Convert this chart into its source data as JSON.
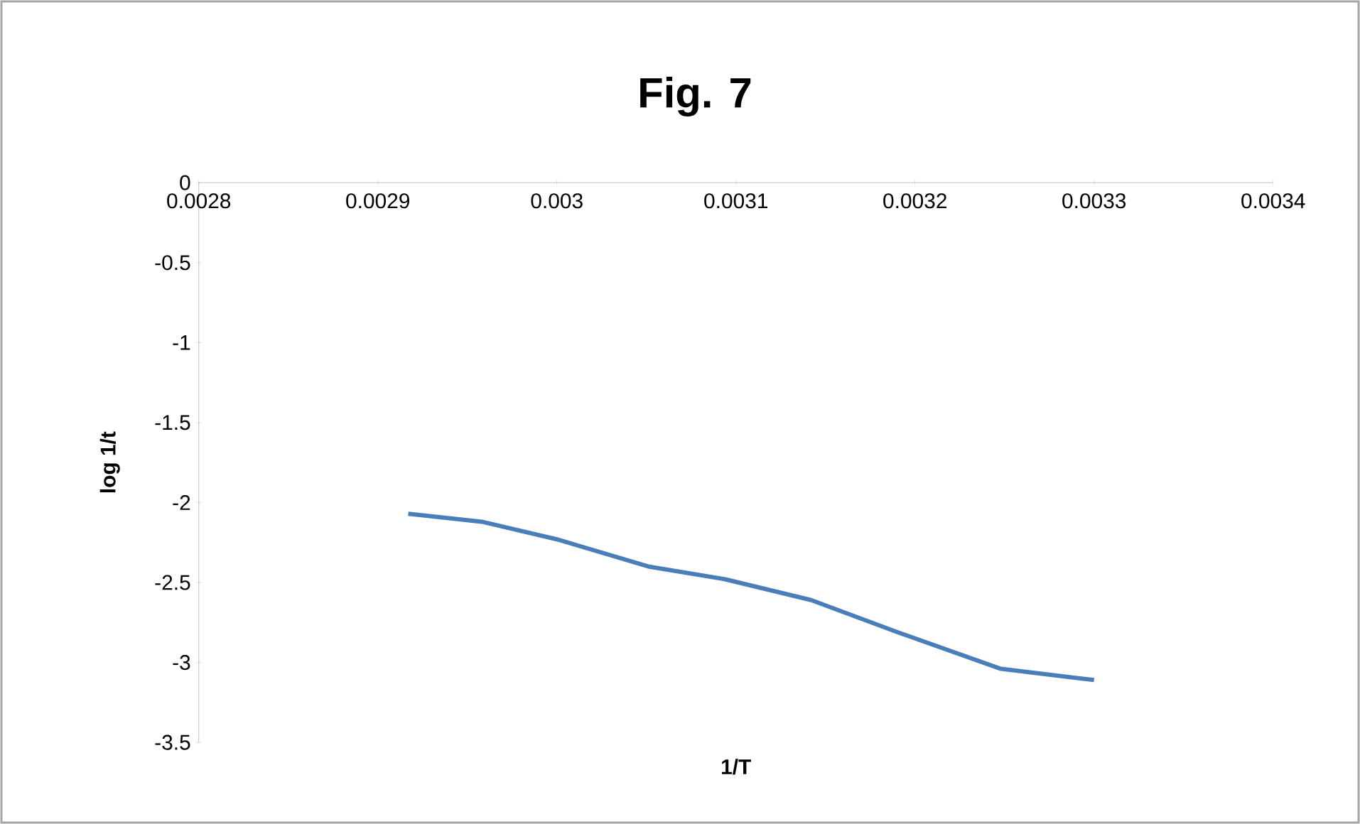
{
  "chart_data": {
    "type": "line",
    "title": "Fig. 7",
    "xlabel": "1/T",
    "ylabel": "log 1/t",
    "x": [
      0.002917,
      0.002958,
      0.003,
      0.003051,
      0.003094,
      0.003142,
      0.00319,
      0.003248,
      0.0033
    ],
    "values": [
      -2.07,
      -2.12,
      -2.23,
      -2.4,
      -2.48,
      -2.61,
      -2.81,
      -3.04,
      -3.11
    ],
    "color": "#4a7ebb",
    "line_style": "solid",
    "xlim": [
      0.0028,
      0.0034
    ],
    "ylim": [
      -3.5,
      0
    ],
    "xticks": [
      0.0028,
      0.0029,
      0.003,
      0.0031,
      0.0032,
      0.0033,
      0.0034
    ],
    "yticks": [
      0,
      -0.5,
      -1,
      -1.5,
      -2,
      -2.5,
      -3,
      -3.5
    ]
  }
}
